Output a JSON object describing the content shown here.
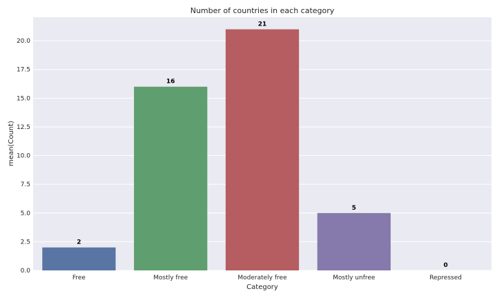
{
  "chart_data": {
    "type": "bar",
    "title": "Number of countries in each category",
    "xlabel": "Category",
    "ylabel": "mean(Count)",
    "categories": [
      "Free",
      "Mostly free",
      "Moderately free",
      "Mostly unfree",
      "Repressed"
    ],
    "values": [
      2,
      16,
      21,
      5,
      0
    ],
    "data_labels": [
      "2",
      "16",
      "21",
      "5",
      "0"
    ],
    "ylim": [
      0,
      22.05
    ],
    "yticks": [
      0,
      2.5,
      5,
      7.5,
      10,
      12.5,
      15,
      17.5,
      20
    ],
    "ytick_labels": [
      "0.0",
      "2.5",
      "5.0",
      "7.5",
      "10.0",
      "12.5",
      "15.0",
      "17.5",
      "20.0"
    ],
    "grid": true,
    "legend": "none",
    "colors": [
      "#5875a4",
      "#5f9e6e",
      "#b55d60",
      "#857aab",
      "#8d7866"
    ],
    "background": "#eaeaf2"
  }
}
